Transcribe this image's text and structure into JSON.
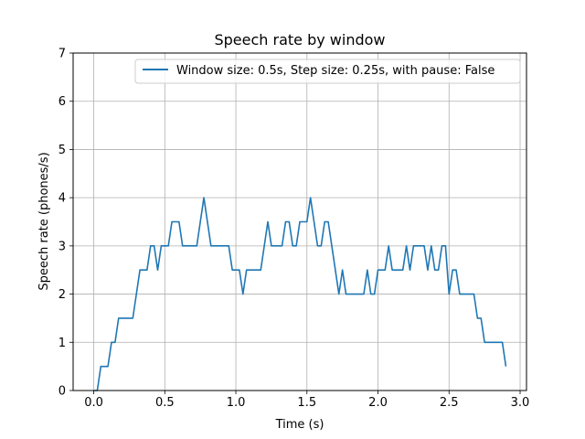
{
  "chart_data": {
    "type": "line",
    "title": "Speech rate by window",
    "xlabel": "Time (s)",
    "ylabel": "Speech rate (phones/s)",
    "xlim": [
      -0.145,
      3.045
    ],
    "ylim": [
      0,
      7
    ],
    "xticks": [
      0.0,
      0.5,
      1.0,
      1.5,
      2.0,
      2.5,
      3.0
    ],
    "xtick_labels": [
      "0.0",
      "0.5",
      "1.0",
      "1.5",
      "2.0",
      "2.5",
      "3.0"
    ],
    "yticks": [
      0,
      1,
      2,
      3,
      4,
      5,
      6,
      7
    ],
    "ytick_labels": [
      "0",
      "1",
      "2",
      "3",
      "4",
      "5",
      "6",
      "7"
    ],
    "grid": true,
    "legend_position": "top-right",
    "colors": {
      "series": "#1f77b4",
      "grid": "#b0b0b0",
      "axes": "#000000"
    },
    "series": [
      {
        "name": "Window size: 0.5s, Step size: 0.25s, with pause: False",
        "x": [
          0.0,
          0.025,
          0.05,
          0.075,
          0.1,
          0.125,
          0.15,
          0.175,
          0.2,
          0.225,
          0.25,
          0.275,
          0.3,
          0.325,
          0.35,
          0.375,
          0.4,
          0.425,
          0.45,
          0.475,
          0.5,
          0.525,
          0.55,
          0.575,
          0.6,
          0.625,
          0.65,
          0.675,
          0.7,
          0.725,
          0.75,
          0.775,
          0.8,
          0.825,
          0.85,
          0.875,
          0.9,
          0.925,
          0.95,
          0.975,
          1.0,
          1.025,
          1.05,
          1.075,
          1.1,
          1.125,
          1.15,
          1.175,
          1.2,
          1.225,
          1.25,
          1.275,
          1.3,
          1.325,
          1.35,
          1.375,
          1.4,
          1.425,
          1.45,
          1.475,
          1.5,
          1.525,
          1.55,
          1.575,
          1.6,
          1.625,
          1.65,
          1.675,
          1.7,
          1.725,
          1.75,
          1.775,
          1.8,
          1.825,
          1.85,
          1.875,
          1.9,
          1.925,
          1.95,
          1.975,
          2.0,
          2.025,
          2.05,
          2.075,
          2.1,
          2.125,
          2.15,
          2.175,
          2.2,
          2.225,
          2.25,
          2.275,
          2.3,
          2.325,
          2.35,
          2.375,
          2.4,
          2.425,
          2.45,
          2.475,
          2.5,
          2.525,
          2.55,
          2.575,
          2.6,
          2.625,
          2.65,
          2.675,
          2.7,
          2.725,
          2.75,
          2.775,
          2.8,
          2.825,
          2.85,
          2.875,
          2.9
        ],
        "y": [
          0,
          0,
          0.5,
          0.5,
          0.5,
          1,
          1,
          1.5,
          1.5,
          1.5,
          1.5,
          1.5,
          2,
          2.5,
          2.5,
          2.5,
          3,
          3,
          2.5,
          3,
          3,
          3,
          3.5,
          3.5,
          3.5,
          3,
          3,
          3,
          3,
          3,
          3.5,
          4,
          3.5,
          3,
          3,
          3,
          3,
          3,
          3,
          2.5,
          2.5,
          2.5,
          2,
          2.5,
          2.5,
          2.5,
          2.5,
          2.5,
          3,
          3.5,
          3,
          3,
          3,
          3,
          3.5,
          3.5,
          3,
          3,
          3.5,
          3.5,
          3.5,
          4,
          3.5,
          3,
          3,
          3.5,
          3.5,
          3,
          2.5,
          2,
          2.5,
          2,
          2,
          2,
          2,
          2,
          2,
          2.5,
          2,
          2,
          2.5,
          2.5,
          2.5,
          3,
          2.5,
          2.5,
          2.5,
          2.5,
          3,
          2.5,
          3,
          3,
          3,
          3,
          2.5,
          3,
          2.5,
          2.5,
          3,
          3,
          2,
          2.5,
          2.5,
          2,
          2,
          2,
          2,
          2,
          1.5,
          1.5,
          1,
          1,
          1,
          1,
          1,
          1,
          0.5
        ]
      }
    ]
  }
}
